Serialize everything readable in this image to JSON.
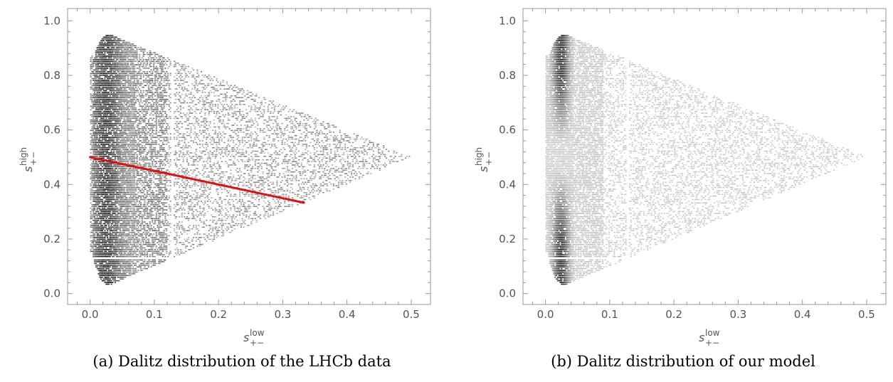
{
  "chart_data": [
    {
      "type": "heatmap",
      "title": "",
      "xlabel_base": "s",
      "xlabel_sub": "+−",
      "xlabel_sup": "low",
      "ylabel_base": "s",
      "ylabel_sub": "+−",
      "ylabel_sup": "high",
      "xlim": [
        -0.035,
        0.53
      ],
      "ylim": [
        -0.04,
        1.045
      ],
      "xticks": [
        "0.0",
        "0.1",
        "0.2",
        "0.3",
        "0.4",
        "0.5"
      ],
      "yticks": [
        "0.0",
        "0.2",
        "0.4",
        "0.6",
        "0.8",
        "1.0"
      ],
      "region": {
        "apex": [
          0.5,
          0.5
        ],
        "top": [
          0.03,
          0.95
        ],
        "bottom": [
          0.03,
          0.03
        ],
        "left_x": 0.0
      },
      "overlay_line": {
        "x": [
          0.0,
          0.333
        ],
        "y": [
          0.5,
          0.333
        ],
        "color": "#dd1111"
      },
      "dense_band_x": [
        0.005,
        0.07
      ],
      "gaps": {
        "x": 0.128,
        "y": 0.128
      },
      "caption": "(a) Dalitz distribution of the LHCb data"
    },
    {
      "type": "heatmap",
      "title": "",
      "xlabel_base": "s",
      "xlabel_sub": "+−",
      "xlabel_sup": "low",
      "ylabel_base": "s",
      "ylabel_sub": "+−",
      "ylabel_sup": "high",
      "xlim": [
        -0.035,
        0.53
      ],
      "ylim": [
        -0.04,
        1.045
      ],
      "xticks": [
        "0.0",
        "0.1",
        "0.2",
        "0.3",
        "0.4",
        "0.5"
      ],
      "yticks": [
        "0.0",
        "0.2",
        "0.4",
        "0.6",
        "0.8",
        "1.0"
      ],
      "region": {
        "apex": [
          0.5,
          0.5
        ],
        "top": [
          0.03,
          0.95
        ],
        "bottom": [
          0.03,
          0.03
        ],
        "left_x": 0.0
      },
      "dense_band_x": [
        0.01,
        0.04
      ],
      "gaps": {
        "x": 0.128,
        "y": 0.128
      },
      "caption": "(b) Dalitz distribution of our model"
    }
  ]
}
